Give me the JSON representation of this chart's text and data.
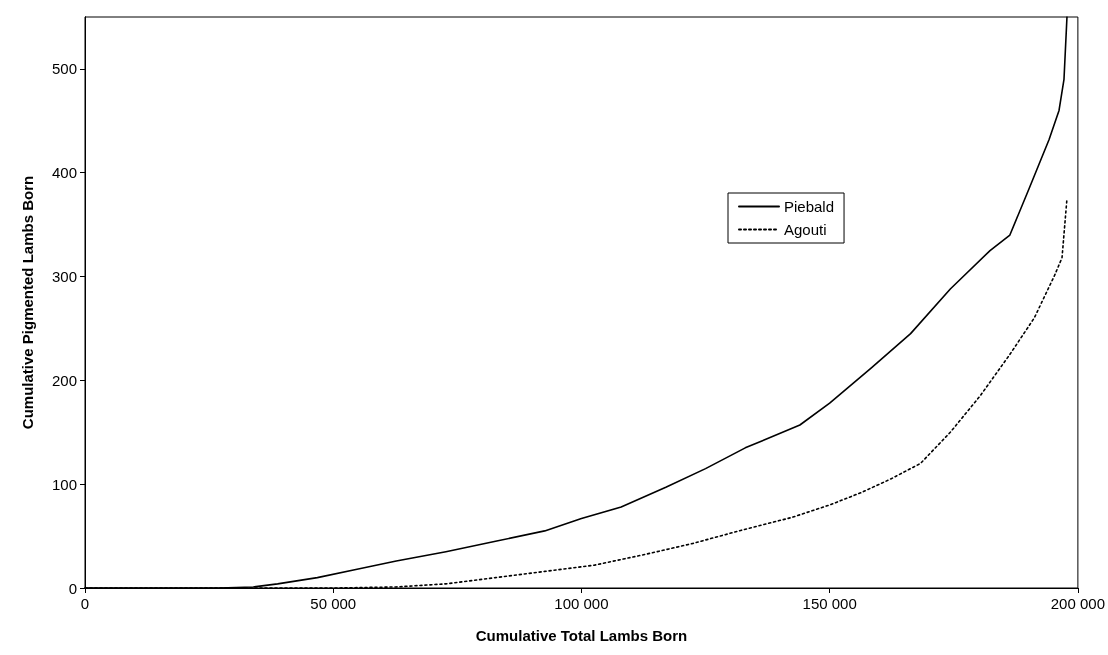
{
  "chart_data": {
    "type": "line",
    "xlabel": "Cumulative Total Lambs Born",
    "ylabel": "Cumulative Pigmented Lambs Born",
    "xlim": [
      0,
      200000
    ],
    "xticks": [
      0,
      {
        "value": 50000,
        "label": "50 000"
      },
      {
        "value": 100000,
        "label": "100 000"
      },
      {
        "value": 150000,
        "label": "150 000"
      },
      {
        "value": 200000,
        "label": "200 000"
      }
    ],
    "ylim": [
      0,
      550
    ],
    "yticks": [
      0,
      100,
      200,
      300,
      400,
      500
    ],
    "grid": false,
    "legend": "center",
    "marker": "none",
    "series": [
      {
        "name": "Piebald",
        "color": "#000000",
        "line_style": "solid",
        "x": [
          0,
          27000,
          33900,
          38800,
          46800,
          54800,
          62700,
          72700,
          82700,
          92600,
          100000,
          108000,
          117000,
          125000,
          133000,
          144000,
          150000,
          158400,
          166300,
          174300,
          182300,
          186300,
          190200,
          194200,
          196200,
          197200,
          197800
        ],
        "values": [
          0,
          0,
          1,
          4,
          10,
          18,
          26,
          35,
          45,
          55,
          67,
          78,
          97,
          115,
          135,
          157,
          178,
          212,
          245,
          288,
          325,
          340,
          385,
          432,
          460,
          490,
          550
        ]
      },
      {
        "name": "Agouti",
        "color": "#000000",
        "line_style": "dotted",
        "x": [
          0,
          50800,
          62700,
          72700,
          82700,
          92600,
          102600,
          112500,
          122500,
          132500,
          142400,
          150000,
          156400,
          162300,
          168300,
          174300,
          180300,
          186300,
          191200,
          195200,
          196800,
          197800
        ],
        "values": [
          0,
          0,
          1,
          4,
          10,
          16,
          22,
          32,
          43,
          56,
          68,
          80,
          92,
          105,
          120,
          150,
          185,
          225,
          260,
          300,
          318,
          375
        ]
      }
    ]
  }
}
